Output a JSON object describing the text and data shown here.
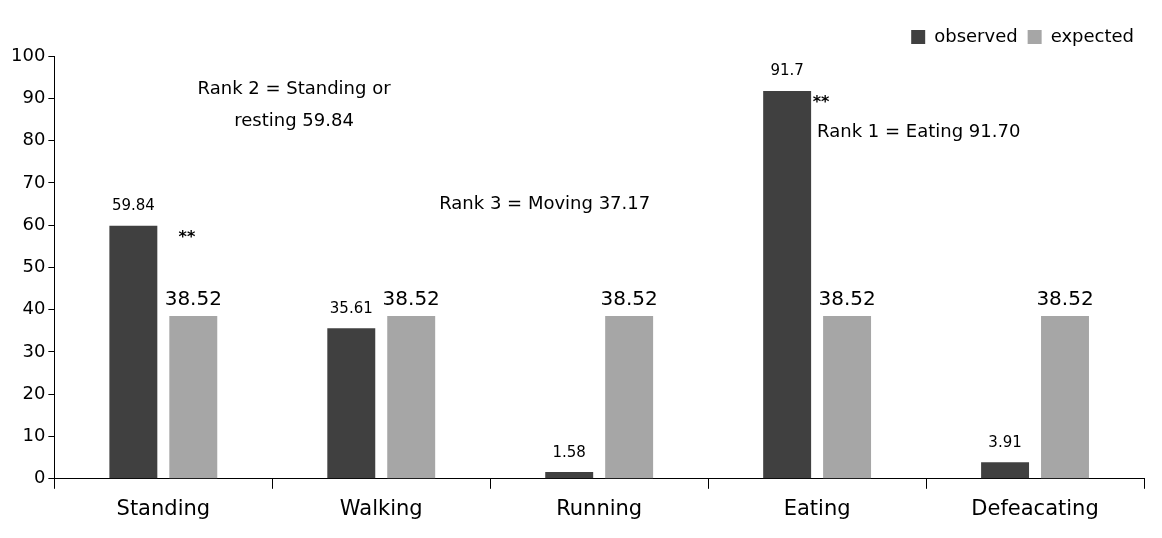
{
  "chart_data": {
    "type": "bar",
    "categories": [
      "Standing",
      "Walking",
      "Running",
      "Eating",
      "Defeacating"
    ],
    "series": [
      {
        "name": "observed",
        "color": "#404040",
        "values": [
          59.84,
          35.61,
          1.58,
          91.7,
          3.91
        ]
      },
      {
        "name": "expected",
        "color": "#a6a6a6",
        "values": [
          38.52,
          38.52,
          38.52,
          38.52,
          38.52
        ]
      }
    ],
    "ylim": [
      0,
      100
    ],
    "yticks": [
      0,
      10,
      20,
      30,
      40,
      50,
      60,
      70,
      80,
      90,
      100
    ],
    "grid": false,
    "legend": "top right",
    "data_labels": true,
    "annotations": [
      "Rank 2 = Standing or resting 59.84",
      "Rank 3 = Moving 37.17",
      "Rank 1 = Eating 91.70",
      "**",
      "**"
    ]
  }
}
